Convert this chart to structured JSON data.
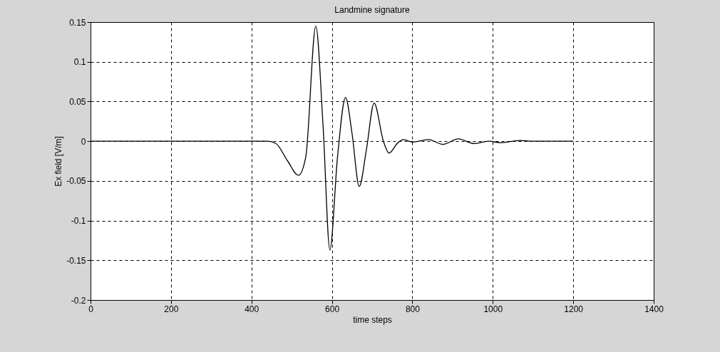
{
  "chart_data": {
    "type": "line",
    "title": "Landmine signature",
    "xlabel": "time steps",
    "ylabel": "Ex field [V/m]",
    "xlim": [
      0,
      1400
    ],
    "xticks": [
      0,
      200,
      400,
      600,
      800,
      1000,
      1200,
      1400
    ],
    "ylim": [
      -0.2,
      0.15
    ],
    "yticks": [
      -0.2,
      -0.15,
      -0.1,
      -0.05,
      0,
      0.05,
      0.1,
      0.15
    ],
    "grid": true,
    "marker": "none",
    "line_style": "solid",
    "series": [
      {
        "color": "#000000",
        "x": [
          0,
          440,
          461,
          490,
          517,
          535,
          560,
          578,
          595,
          614,
          634,
          650,
          668,
          686,
          705,
          728,
          742,
          764,
          778,
          800,
          840,
          876,
          914,
          953,
          990,
          1020,
          1067,
          1100,
          1200
        ],
        "values": [
          0,
          0,
          -0.003,
          -0.025,
          -0.043,
          -0.02,
          0.145,
          0.02,
          -0.137,
          -0.02,
          0.055,
          0.01,
          -0.057,
          -0.01,
          0.048,
          0,
          -0.015,
          -0.002,
          0.002,
          -0.001,
          0.002,
          -0.004,
          0.003,
          -0.003,
          0,
          -0.002,
          0.001,
          0,
          0
        ]
      }
    ]
  }
}
